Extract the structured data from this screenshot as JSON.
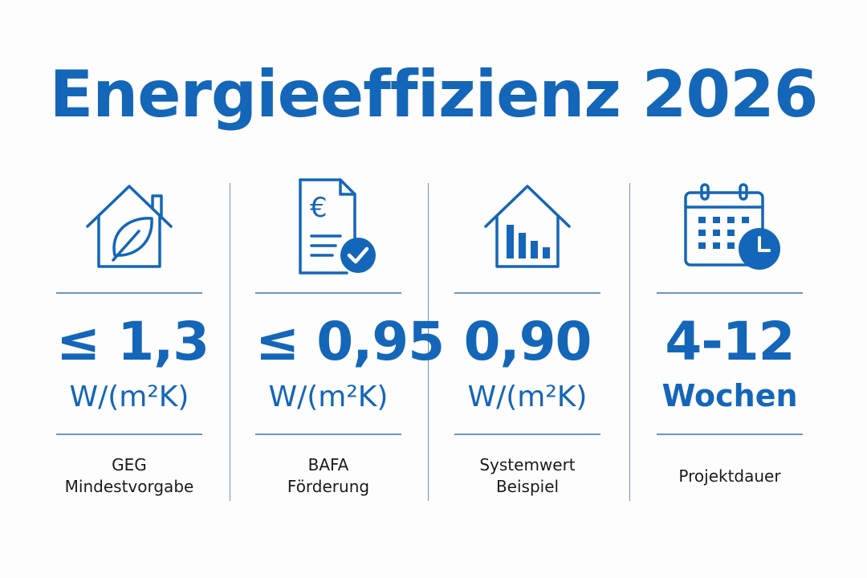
{
  "title": "Energieeffizienz 2026",
  "colors": {
    "accent": "#1466b8",
    "divider": "#6d94c4",
    "text": "#1a1a1a"
  },
  "columns": [
    {
      "icon": "house-leaf-icon",
      "value": "≤ 1,3",
      "unit": "W/(m²K)",
      "label_line1": "GEG",
      "label_line2": "Mindestvorgabe"
    },
    {
      "icon": "euro-document-check-icon",
      "value": "≤ 0,95",
      "unit": "W/(m²K)",
      "label_line1": "BAFA",
      "label_line2": "Förderung"
    },
    {
      "icon": "house-bar-chart-icon",
      "value": "0,90",
      "unit": "W/(m²K)",
      "label_line1": "Systemwert",
      "label_line2": "Beispiel"
    },
    {
      "icon": "calendar-clock-icon",
      "value": "4-12",
      "unit": "Wochen",
      "label_line1": "Projektdauer"
    }
  ]
}
